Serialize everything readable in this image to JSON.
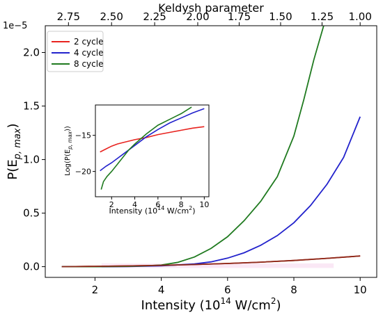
{
  "chart_data": [
    {
      "type": "line",
      "xlabel": "Intensity (10",
      "xlabel_sup": "14",
      "xlabel_mid": " W/cm",
      "xlabel_sup2": "2",
      "xlabel_end": ")",
      "ylabel_main": "P(E",
      "ylabel_sub": "p, max",
      "ylabel_end": ")",
      "top_label": "Keldysh parameter",
      "offset_text": "1e−5",
      "xlim": [
        0.5,
        10.5
      ],
      "ylim": [
        -0.1,
        2.25
      ],
      "xticks": [
        2,
        4,
        6,
        8,
        10
      ],
      "xtick_labels": [
        "2",
        "4",
        "6",
        "8",
        "10"
      ],
      "yticks": [
        0.0,
        0.5,
        1.0,
        1.5,
        2.0
      ],
      "ytick_labels": [
        "0.0",
        "0.5",
        "1.0",
        "1.5",
        "2.0"
      ],
      "top_ticks": [
        2.75,
        2.5,
        2.25,
        2.0,
        1.75,
        1.5,
        1.25,
        1.0
      ],
      "top_tick_labels": [
        "2.75",
        "2.50",
        "2.25",
        "2.00",
        "1.75",
        "1.50",
        "1.25",
        "1.00"
      ],
      "top_tick_positions": [
        1.2,
        2.5,
        3.8,
        5.1,
        6.35,
        7.6,
        8.85,
        10.0
      ],
      "legend_placement": "top-left",
      "series": [
        {
          "name": "2 cycle",
          "color": "#e8231f",
          "x": [
            1,
            2,
            3,
            4,
            5,
            6,
            7,
            8,
            9,
            10
          ],
          "y": [
            0.0,
            0.003,
            0.007,
            0.012,
            0.02,
            0.03,
            0.042,
            0.058,
            0.078,
            0.1
          ]
        },
        {
          "name": "4 cycle",
          "color": "#2222cc",
          "x": [
            1,
            2,
            3,
            4,
            5,
            5.5,
            6,
            6.5,
            7,
            7.5,
            8,
            8.5,
            9,
            9.5,
            10
          ],
          "y": [
            0.0,
            0.0,
            0.002,
            0.008,
            0.025,
            0.045,
            0.08,
            0.13,
            0.2,
            0.29,
            0.41,
            0.57,
            0.77,
            1.02,
            1.4
          ]
        },
        {
          "name": "8 cycle",
          "color": "#1f7a1f",
          "x": [
            1,
            2,
            3,
            3.5,
            4,
            4.5,
            5,
            5.5,
            6,
            6.5,
            7,
            7.5,
            8,
            8.3,
            8.6,
            8.9
          ],
          "y": [
            0.0,
            0.0,
            0.003,
            0.007,
            0.015,
            0.04,
            0.09,
            0.17,
            0.28,
            0.43,
            0.61,
            0.84,
            1.22,
            1.56,
            1.93,
            2.25
          ]
        },
        {
          "name": "",
          "color": "#8b2a1a",
          "x": [
            1,
            2,
            3,
            4,
            5,
            6,
            7,
            8,
            9,
            10
          ],
          "y": [
            0.0,
            0.003,
            0.007,
            0.012,
            0.02,
            0.03,
            0.042,
            0.058,
            0.078,
            0.1
          ]
        }
      ]
    },
    {
      "type": "line",
      "xlabel": "Intensity (10",
      "xlabel_sup": "14",
      "xlabel_mid": " W/cm",
      "xlabel_sup2": "2",
      "xlabel_end": ")",
      "ylabel_main": "Log(P(E",
      "ylabel_sub": "p, max",
      "ylabel_end": "))",
      "xlim": [
        0.6,
        10.4
      ],
      "ylim": [
        -23.5,
        -10.8
      ],
      "xticks": [
        2,
        4,
        6,
        8,
        10
      ],
      "xtick_labels": [
        "2",
        "4",
        "6",
        "8",
        "10"
      ],
      "yticks": [
        -15,
        -20
      ],
      "ytick_labels": [
        "−15",
        "−20"
      ],
      "series": [
        {
          "color": "#e8231f",
          "x": [
            1,
            1.5,
            2,
            2.5,
            3,
            4,
            5,
            6,
            7,
            8,
            9,
            10
          ],
          "y": [
            -17.3,
            -16.9,
            -16.5,
            -16.2,
            -16.0,
            -15.6,
            -15.3,
            -14.9,
            -14.6,
            -14.3,
            -14.0,
            -13.8
          ]
        },
        {
          "color": "#2222cc",
          "x": [
            1,
            1.5,
            2,
            2.5,
            3,
            4,
            5,
            6,
            7,
            8,
            9,
            10
          ],
          "y": [
            -19.9,
            -19.3,
            -18.8,
            -18.2,
            -17.6,
            -16.4,
            -15.2,
            -14.2,
            -13.3,
            -12.6,
            -11.9,
            -11.3
          ]
        },
        {
          "color": "#1f7a1f",
          "x": [
            1.1,
            1.3,
            1.6,
            2,
            2.5,
            3,
            3.5,
            4,
            5,
            6,
            7,
            8,
            8.9
          ],
          "y": [
            -22.5,
            -21.4,
            -20.7,
            -20.0,
            -19.0,
            -18.0,
            -17.0,
            -16.2,
            -14.8,
            -13.6,
            -12.8,
            -12.0,
            -11.1
          ]
        }
      ]
    }
  ]
}
